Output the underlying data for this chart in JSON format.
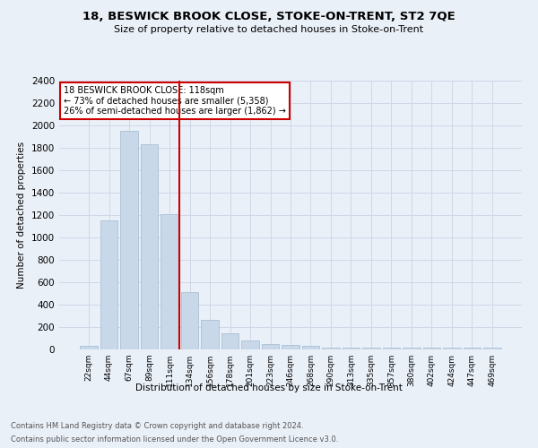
{
  "title1": "18, BESWICK BROOK CLOSE, STOKE-ON-TRENT, ST2 7QE",
  "title2": "Size of property relative to detached houses in Stoke-on-Trent",
  "xlabel": "Distribution of detached houses by size in Stoke-on-Trent",
  "ylabel": "Number of detached properties",
  "footnote1": "Contains HM Land Registry data © Crown copyright and database right 2024.",
  "footnote2": "Contains public sector information licensed under the Open Government Licence v3.0.",
  "bar_labels": [
    "22sqm",
    "44sqm",
    "67sqm",
    "89sqm",
    "111sqm",
    "134sqm",
    "156sqm",
    "178sqm",
    "201sqm",
    "223sqm",
    "246sqm",
    "268sqm",
    "290sqm",
    "313sqm",
    "335sqm",
    "357sqm",
    "380sqm",
    "402sqm",
    "424sqm",
    "447sqm",
    "469sqm"
  ],
  "bar_values": [
    30,
    1150,
    1950,
    1830,
    1210,
    510,
    265,
    148,
    82,
    45,
    42,
    35,
    20,
    20,
    20,
    20,
    20,
    20,
    20,
    20,
    20
  ],
  "bar_color": "#c8d8e8",
  "bar_edgecolor": "#a0b8d0",
  "annotation_title": "18 BESWICK BROOK CLOSE: 118sqm",
  "annotation_line1": "← 73% of detached houses are smaller (5,358)",
  "annotation_line2": "26% of semi-detached houses are larger (1,862) →",
  "annotation_box_color": "#ffffff",
  "annotation_box_edgecolor": "#cc0000",
  "red_line_color": "#cc0000",
  "ylim": [
    0,
    2400
  ],
  "yticks": [
    0,
    200,
    400,
    600,
    800,
    1000,
    1200,
    1400,
    1600,
    1800,
    2000,
    2200,
    2400
  ],
  "grid_color": "#d0d8e8",
  "bg_color": "#eaf0f8"
}
